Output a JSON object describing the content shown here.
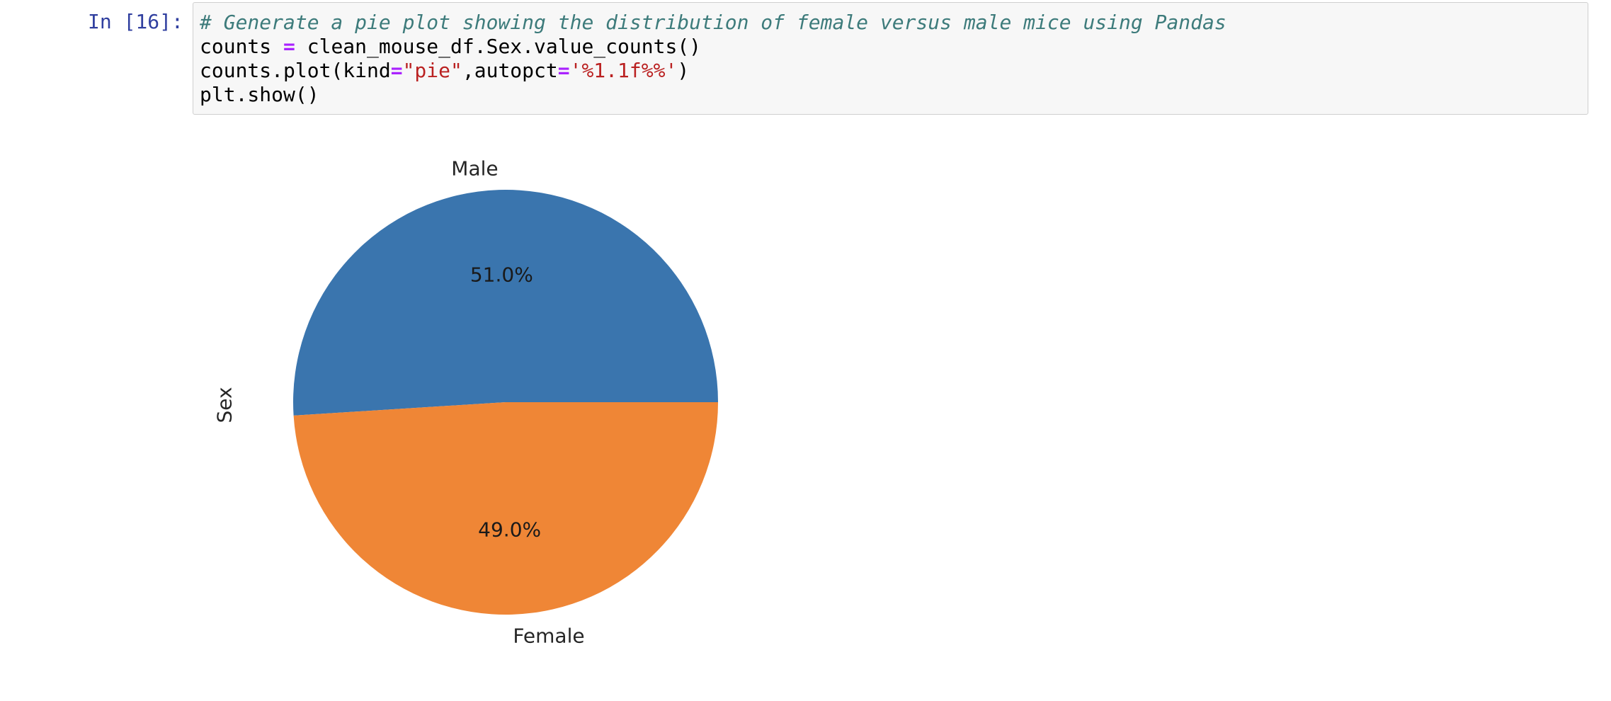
{
  "cell": {
    "prompt": "In [16]:",
    "code_lines": [
      [
        {
          "t": "comment",
          "v": "# Generate a pie plot showing the distribution of female versus male mice using Pandas"
        }
      ],
      [
        {
          "t": "plain",
          "v": "counts "
        },
        {
          "t": "op",
          "v": "="
        },
        {
          "t": "plain",
          "v": " clean_mouse_df.Sex.value_counts()"
        }
      ],
      [
        {
          "t": "plain",
          "v": "counts.plot(kind"
        },
        {
          "t": "op",
          "v": "="
        },
        {
          "t": "str",
          "v": "\"pie\""
        },
        {
          "t": "plain",
          "v": ",autopct"
        },
        {
          "t": "op",
          "v": "="
        },
        {
          "t": "str",
          "v": "'%1.1f%%'"
        },
        {
          "t": "plain",
          "v": ")"
        }
      ],
      [
        {
          "t": "plain",
          "v": "plt.show()"
        }
      ]
    ]
  },
  "chart_data": {
    "type": "pie",
    "ylabel": "Sex",
    "slices": [
      {
        "label": "Male",
        "value": 51.0,
        "pct_label": "51.0%",
        "color": "#3a75ae"
      },
      {
        "label": "Female",
        "value": 49.0,
        "pct_label": "49.0%",
        "color": "#ef8636"
      }
    ],
    "startangle_deg": 0,
    "legend": "none"
  }
}
